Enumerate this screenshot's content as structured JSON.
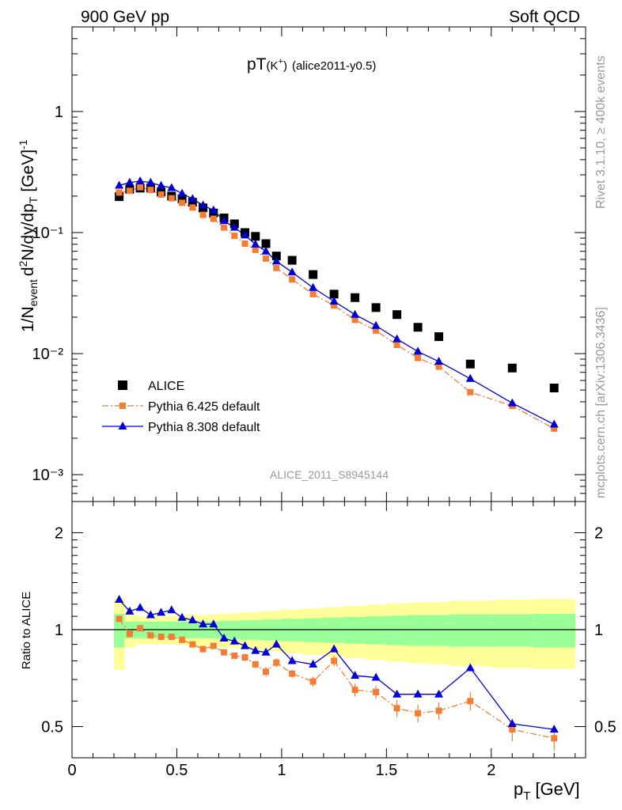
{
  "header": {
    "left": "900 GeV pp",
    "right": "Soft QCD"
  },
  "side": {
    "rivet": "Rivet 3.1.10, ≥ 400k events",
    "mcplots": "mcplots.cern.ch [arXiv:1306.3436]"
  },
  "main_panel": {
    "title_main": "pT",
    "title_paren": "(K",
    "title_sup": "+",
    "title_close": ")",
    "title_tag": "(alice2011-y0.5)",
    "watermark": "ALICE_2011_S8945144",
    "ylabel": "1/N_event d²N/dy/dp_T [GeV]⁻¹",
    "ytick_labels": [
      "1",
      "10⁻¹",
      "10⁻²",
      "10⁻³"
    ]
  },
  "ratio_panel": {
    "ylabel": "Ratio to ALICE",
    "ytick_labels": [
      "0.5",
      "1",
      "2"
    ]
  },
  "xaxis": {
    "tick_labels": [
      "0",
      "0.5",
      "1",
      "1.5",
      "2"
    ],
    "label": "p_T [GeV]"
  },
  "legend": [
    {
      "name": "ALICE"
    },
    {
      "name": "Pythia 6.425 default"
    },
    {
      "name": "Pythia 8.308 default"
    }
  ],
  "colors": {
    "data": "#000000",
    "pythia6": "#f47c34",
    "pythia8": "#0000d6",
    "band_inner": "#99ff99",
    "band_outer": "#ffff99"
  },
  "chart_data": {
    "type": "scatter",
    "x_range": [
      0,
      2.45
    ],
    "main_y_scale": "log",
    "main_y_range": [
      0.0006,
      5
    ],
    "ratio_y_scale": "log",
    "ratio_y_range": [
      0.4,
      2.5
    ],
    "x": [
      0.225,
      0.275,
      0.325,
      0.375,
      0.425,
      0.475,
      0.525,
      0.575,
      0.625,
      0.675,
      0.725,
      0.775,
      0.825,
      0.875,
      0.925,
      0.975,
      1.05,
      1.15,
      1.25,
      1.35,
      1.45,
      1.55,
      1.65,
      1.75,
      1.9,
      2.1,
      2.3
    ],
    "series": [
      {
        "name": "ALICE",
        "style": "markers",
        "values": [
          0.198,
          0.228,
          0.233,
          0.233,
          0.216,
          0.2,
          0.19,
          0.178,
          0.16,
          0.145,
          0.132,
          0.118,
          0.1,
          0.093,
          0.081,
          0.064,
          0.059,
          0.045,
          0.031,
          0.029,
          0.024,
          0.021,
          0.0165,
          0.0138,
          0.0082,
          0.0076,
          0.0052
        ]
      },
      {
        "name": "Pythia 6.425 default",
        "style": "dashdot-squares",
        "values": [
          0.214,
          0.221,
          0.237,
          0.225,
          0.206,
          0.192,
          0.176,
          0.161,
          0.14,
          0.13,
          0.11,
          0.094,
          0.081,
          0.072,
          0.061,
          0.051,
          0.041,
          0.031,
          0.025,
          0.019,
          0.0155,
          0.0118,
          0.0092,
          0.0078,
          0.0048,
          0.0037,
          0.0024
        ]
      },
      {
        "name": "Pythia 8.308 default",
        "style": "line-triangles",
        "values": [
          0.245,
          0.259,
          0.266,
          0.259,
          0.244,
          0.234,
          0.21,
          0.19,
          0.168,
          0.153,
          0.125,
          0.11,
          0.095,
          0.08,
          0.07,
          0.058,
          0.047,
          0.035,
          0.027,
          0.021,
          0.017,
          0.0132,
          0.0104,
          0.0086,
          0.0062,
          0.0039,
          0.0026
        ]
      }
    ],
    "ratio": {
      "x": [
        0.225,
        0.275,
        0.325,
        0.375,
        0.425,
        0.475,
        0.525,
        0.575,
        0.625,
        0.675,
        0.725,
        0.775,
        0.825,
        0.875,
        0.925,
        0.975,
        1.05,
        1.15,
        1.25,
        1.35,
        1.45,
        1.55,
        1.65,
        1.75,
        1.9,
        2.1,
        2.3
      ],
      "pythia6": [
        1.08,
        0.97,
        1.01,
        0.96,
        0.95,
        0.95,
        0.93,
        0.9,
        0.87,
        0.89,
        0.85,
        0.83,
        0.82,
        0.78,
        0.74,
        0.79,
        0.73,
        0.69,
        0.8,
        0.65,
        0.64,
        0.57,
        0.55,
        0.56,
        0.6,
        0.49,
        0.46
      ],
      "pythia6_err": [
        0.02,
        0.015,
        0.015,
        0.015,
        0.015,
        0.015,
        0.015,
        0.015,
        0.015,
        0.015,
        0.015,
        0.015,
        0.02,
        0.02,
        0.025,
        0.025,
        0.02,
        0.025,
        0.03,
        0.03,
        0.03,
        0.035,
        0.035,
        0.035,
        0.04,
        0.04,
        0.04
      ],
      "pythia8": [
        1.24,
        1.14,
        1.17,
        1.11,
        1.13,
        1.15,
        1.09,
        1.07,
        1.04,
        1.04,
        0.94,
        0.92,
        0.89,
        0.86,
        0.85,
        0.9,
        0.8,
        0.78,
        0.87,
        0.72,
        0.71,
        0.63,
        0.63,
        0.63,
        0.76,
        0.51,
        0.49
      ],
      "band_edges": [
        0.2,
        0.25,
        0.3,
        0.35,
        0.4,
        0.45,
        0.5,
        0.55,
        0.6,
        0.65,
        0.7,
        0.75,
        0.8,
        0.85,
        0.9,
        0.95,
        1.0,
        1.1,
        1.2,
        1.3,
        1.4,
        1.5,
        1.6,
        1.7,
        1.8,
        2.0,
        2.2,
        2.4
      ],
      "band_inner": [
        0.12,
        0.06,
        0.06,
        0.06,
        0.06,
        0.06,
        0.06,
        0.06,
        0.06,
        0.06,
        0.065,
        0.065,
        0.07,
        0.07,
        0.075,
        0.075,
        0.08,
        0.085,
        0.09,
        0.095,
        0.1,
        0.105,
        0.11,
        0.11,
        0.115,
        0.115,
        0.12
      ],
      "band_outer": [
        0.25,
        0.12,
        0.1,
        0.1,
        0.1,
        0.1,
        0.105,
        0.11,
        0.11,
        0.115,
        0.12,
        0.125,
        0.13,
        0.135,
        0.14,
        0.145,
        0.155,
        0.165,
        0.175,
        0.185,
        0.195,
        0.205,
        0.215,
        0.22,
        0.23,
        0.24,
        0.245
      ]
    }
  }
}
